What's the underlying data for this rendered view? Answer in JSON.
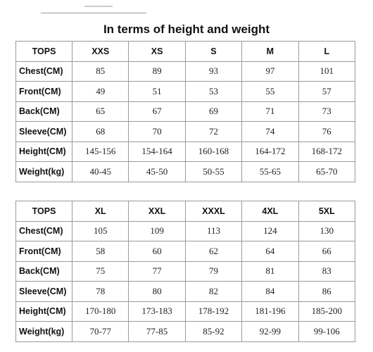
{
  "title": "In terms of height and weight",
  "tables": [
    {
      "rows": [
        [
          "TOPS",
          "XXS",
          "XS",
          "S",
          "M",
          "L"
        ],
        [
          "Chest(CM)",
          85,
          89,
          93,
          97,
          101
        ],
        [
          "Front(CM)",
          49,
          51,
          53,
          55,
          57
        ],
        [
          "Back(CM)",
          65,
          67,
          69,
          71,
          73
        ],
        [
          "Sleeve(CM)",
          68,
          70,
          72,
          74,
          76
        ],
        [
          "Height(CM)",
          "145-156",
          "154-164",
          "160-168",
          "164-172",
          "168-172"
        ],
        [
          "Weight(kg)",
          "40-45",
          "45-50",
          "50-55",
          "55-65",
          "65-70"
        ]
      ]
    },
    {
      "rows": [
        [
          "TOPS",
          "XL",
          "XXL",
          "XXXL",
          "4XL",
          "5XL"
        ],
        [
          "Chest(CM)",
          105,
          109,
          113,
          124,
          130
        ],
        [
          "Front(CM)",
          58,
          60,
          62,
          64,
          66
        ],
        [
          "Back(CM)",
          75,
          77,
          79,
          81,
          83
        ],
        [
          "Sleeve(CM)",
          78,
          80,
          82,
          84,
          86
        ],
        [
          "Height(CM)",
          "170-180",
          "173-183",
          "178-192",
          "181-196",
          "185-200"
        ],
        [
          "Weight(kg)",
          "70-77",
          "77-85",
          "85-92",
          "92-99",
          "99-106"
        ]
      ]
    }
  ]
}
